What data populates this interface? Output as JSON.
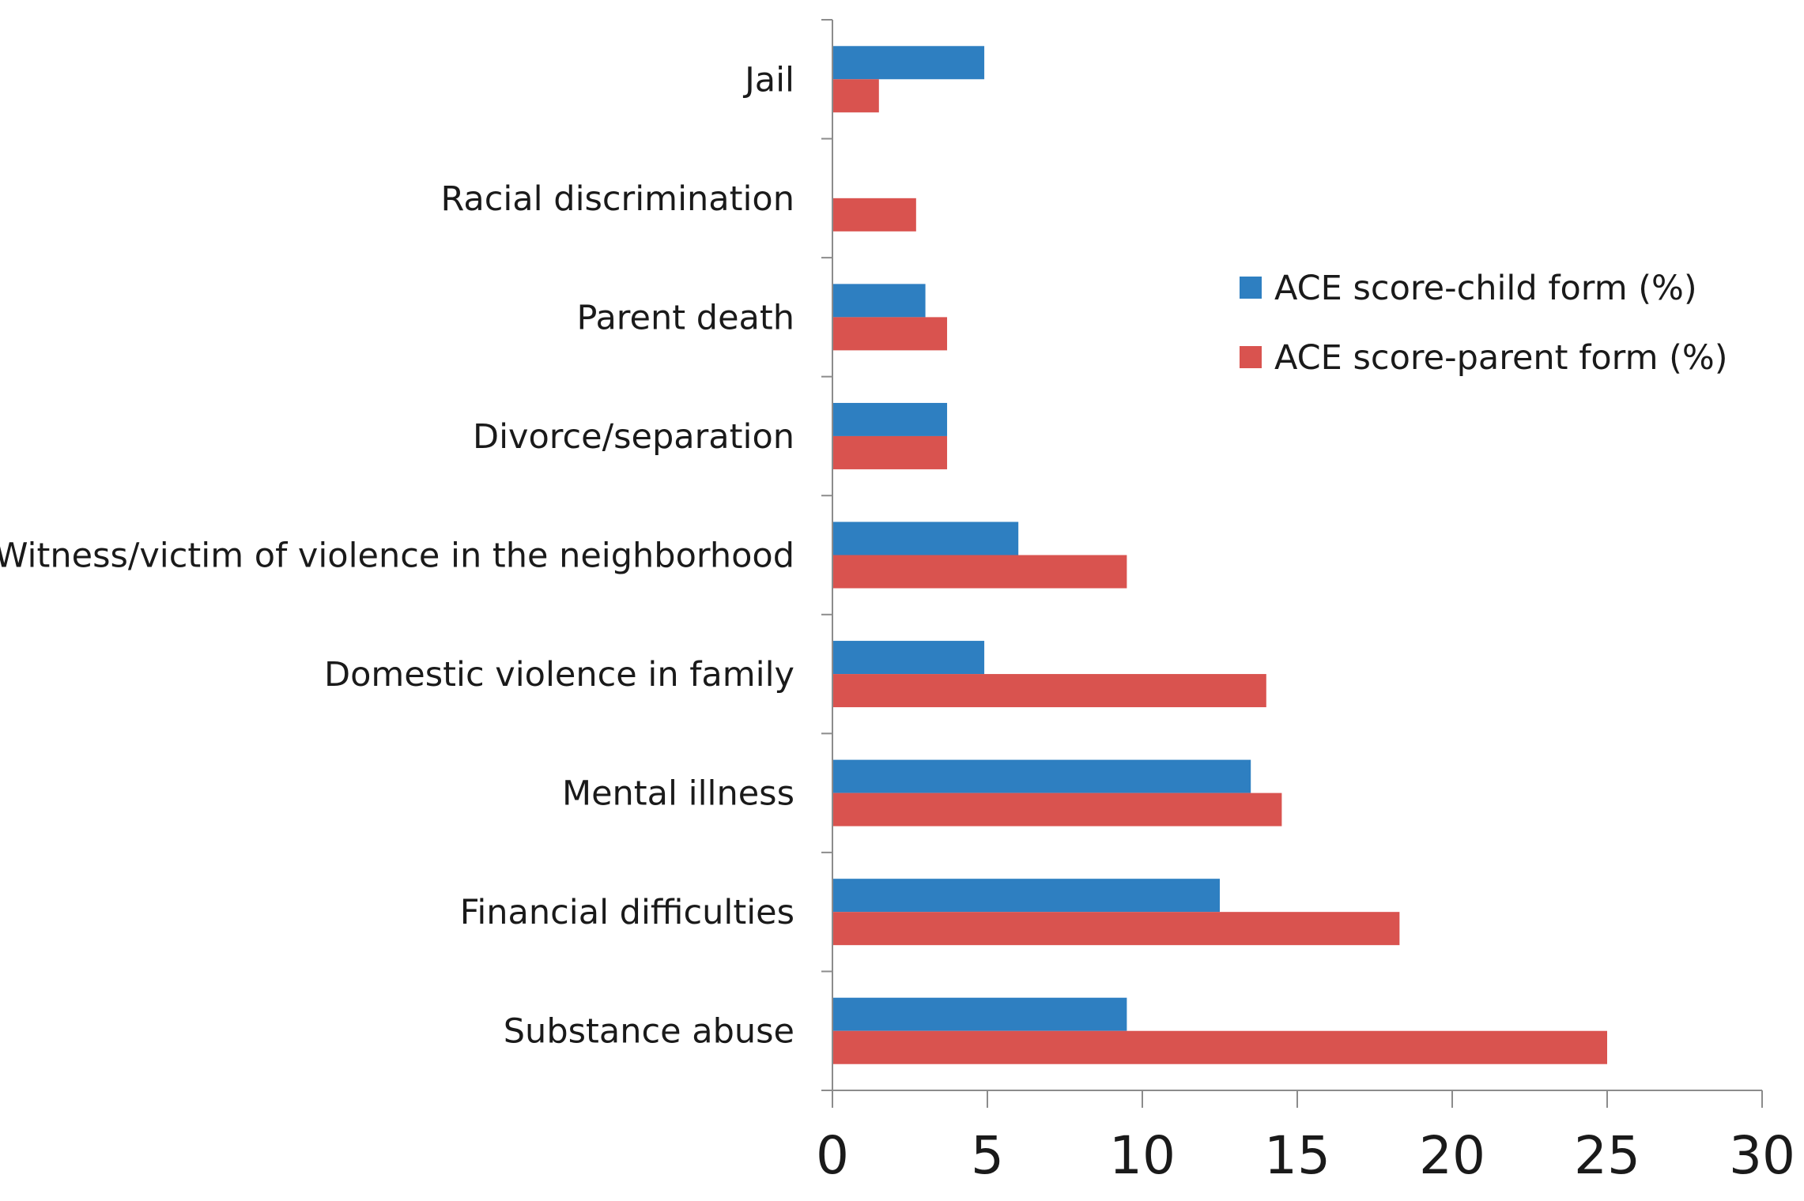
{
  "chart_data": {
    "type": "bar",
    "orientation": "horizontal",
    "title": "",
    "xlabel": "",
    "ylabel": "",
    "xlim": [
      0,
      30
    ],
    "x_ticks": [
      0,
      5,
      10,
      15,
      20,
      25,
      30
    ],
    "grid": false,
    "legend_position": "right",
    "categories": [
      "Jail",
      "Racial discrimination",
      "Parent death",
      "Divorce/separation",
      "Witness/victim of violence in the neighborhood",
      "Domestic violence in family",
      "Mental illness",
      "Financial difficulties",
      "Substance abuse"
    ],
    "series": [
      {
        "name": "ACE score-child form (%)",
        "color": "#2e7fc1",
        "values": [
          4.9,
          0,
          3.0,
          3.7,
          6.0,
          4.9,
          13.5,
          12.5,
          9.5
        ]
      },
      {
        "name": "ACE score-parent form (%)",
        "color": "#d9534f",
        "values": [
          1.5,
          2.7,
          3.7,
          3.7,
          9.5,
          14.0,
          14.5,
          18.3,
          25.0
        ]
      }
    ]
  }
}
